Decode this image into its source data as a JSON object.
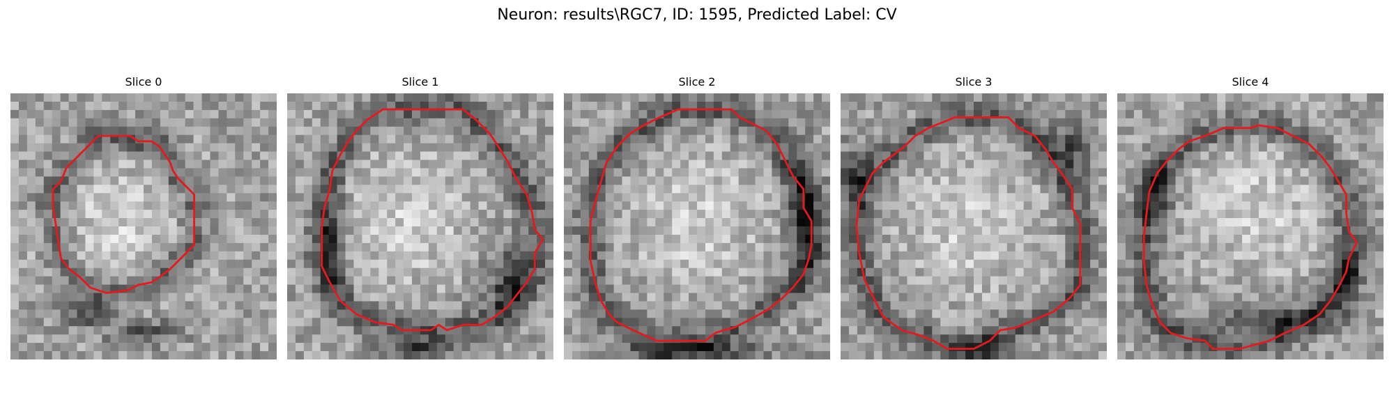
{
  "figure": {
    "title": "Neuron: results\\RGC7, ID: 1595, Predicted Label: CV"
  },
  "panels": [
    {
      "title": "Slice 0",
      "seed": 11,
      "roi": [
        [
          0.36,
          0.16
        ],
        [
          0.45,
          0.16
        ],
        [
          0.48,
          0.18
        ],
        [
          0.53,
          0.18
        ],
        [
          0.56,
          0.2
        ],
        [
          0.58,
          0.23
        ],
        [
          0.6,
          0.26
        ],
        [
          0.61,
          0.29
        ],
        [
          0.63,
          0.32
        ],
        [
          0.66,
          0.35
        ],
        [
          0.69,
          0.38
        ],
        [
          0.69,
          0.43
        ],
        [
          0.69,
          0.5
        ],
        [
          0.69,
          0.57
        ],
        [
          0.66,
          0.6
        ],
        [
          0.63,
          0.63
        ],
        [
          0.6,
          0.66
        ],
        [
          0.56,
          0.69
        ],
        [
          0.53,
          0.71
        ],
        [
          0.48,
          0.72
        ],
        [
          0.44,
          0.74
        ],
        [
          0.36,
          0.75
        ],
        [
          0.3,
          0.73
        ],
        [
          0.26,
          0.69
        ],
        [
          0.22,
          0.66
        ],
        [
          0.19,
          0.62
        ],
        [
          0.18,
          0.56
        ],
        [
          0.17,
          0.49
        ],
        [
          0.16,
          0.43
        ],
        [
          0.16,
          0.36
        ],
        [
          0.19,
          0.33
        ],
        [
          0.21,
          0.28
        ],
        [
          0.24,
          0.25
        ],
        [
          0.27,
          0.22
        ],
        [
          0.3,
          0.19
        ],
        [
          0.33,
          0.16
        ]
      ],
      "bright": [
        0.42,
        0.49,
        0.26,
        0.25
      ],
      "dark": [
        [
          0.5,
          0.9,
          0.13,
          0.05
        ],
        [
          0.28,
          0.83,
          0.1,
          0.05
        ]
      ]
    },
    {
      "title": "Slice 1",
      "seed": 23,
      "roi": [
        [
          0.36,
          0.06
        ],
        [
          0.66,
          0.06
        ],
        [
          0.71,
          0.1
        ],
        [
          0.76,
          0.15
        ],
        [
          0.8,
          0.21
        ],
        [
          0.83,
          0.26
        ],
        [
          0.86,
          0.32
        ],
        [
          0.9,
          0.38
        ],
        [
          0.92,
          0.45
        ],
        [
          0.93,
          0.51
        ],
        [
          0.96,
          0.55
        ],
        [
          0.93,
          0.6
        ],
        [
          0.93,
          0.66
        ],
        [
          0.9,
          0.71
        ],
        [
          0.86,
          0.76
        ],
        [
          0.83,
          0.8
        ],
        [
          0.78,
          0.84
        ],
        [
          0.73,
          0.87
        ],
        [
          0.66,
          0.87
        ],
        [
          0.6,
          0.89
        ],
        [
          0.57,
          0.87
        ],
        [
          0.54,
          0.89
        ],
        [
          0.43,
          0.89
        ],
        [
          0.4,
          0.87
        ],
        [
          0.33,
          0.86
        ],
        [
          0.26,
          0.83
        ],
        [
          0.2,
          0.78
        ],
        [
          0.16,
          0.71
        ],
        [
          0.13,
          0.65
        ],
        [
          0.13,
          0.58
        ],
        [
          0.13,
          0.5
        ],
        [
          0.14,
          0.43
        ],
        [
          0.16,
          0.36
        ],
        [
          0.17,
          0.29
        ],
        [
          0.2,
          0.23
        ],
        [
          0.23,
          0.18
        ],
        [
          0.26,
          0.14
        ],
        [
          0.3,
          0.1
        ]
      ],
      "bright": [
        0.45,
        0.47,
        0.28,
        0.3
      ],
      "dark": [
        [
          0.5,
          0.96,
          0.14,
          0.04
        ],
        [
          0.17,
          0.58,
          0.05,
          0.2
        ],
        [
          0.82,
          0.7,
          0.07,
          0.12
        ]
      ]
    },
    {
      "title": "Slice 2",
      "seed": 37,
      "roi": [
        [
          0.43,
          0.06
        ],
        [
          0.63,
          0.06
        ],
        [
          0.66,
          0.09
        ],
        [
          0.7,
          0.11
        ],
        [
          0.76,
          0.14
        ],
        [
          0.8,
          0.19
        ],
        [
          0.83,
          0.25
        ],
        [
          0.86,
          0.31
        ],
        [
          0.9,
          0.36
        ],
        [
          0.9,
          0.43
        ],
        [
          0.93,
          0.48
        ],
        [
          0.93,
          0.57
        ],
        [
          0.92,
          0.62
        ],
        [
          0.9,
          0.68
        ],
        [
          0.86,
          0.73
        ],
        [
          0.82,
          0.77
        ],
        [
          0.77,
          0.81
        ],
        [
          0.7,
          0.85
        ],
        [
          0.64,
          0.88
        ],
        [
          0.6,
          0.89
        ],
        [
          0.57,
          0.9
        ],
        [
          0.53,
          0.93
        ],
        [
          0.46,
          0.93
        ],
        [
          0.35,
          0.93
        ],
        [
          0.26,
          0.89
        ],
        [
          0.2,
          0.86
        ],
        [
          0.17,
          0.83
        ],
        [
          0.14,
          0.78
        ],
        [
          0.12,
          0.72
        ],
        [
          0.1,
          0.63
        ],
        [
          0.1,
          0.56
        ],
        [
          0.1,
          0.48
        ],
        [
          0.12,
          0.4
        ],
        [
          0.14,
          0.33
        ],
        [
          0.16,
          0.26
        ],
        [
          0.2,
          0.2
        ],
        [
          0.25,
          0.15
        ],
        [
          0.3,
          0.12
        ],
        [
          0.36,
          0.09
        ]
      ],
      "bright": [
        0.5,
        0.48,
        0.28,
        0.28
      ],
      "dark": [
        [
          0.5,
          0.97,
          0.3,
          0.04
        ],
        [
          0.9,
          0.45,
          0.06,
          0.25
        ]
      ]
    },
    {
      "title": "Slice 3",
      "seed": 53,
      "roi": [
        [
          0.33,
          0.13
        ],
        [
          0.43,
          0.09
        ],
        [
          0.63,
          0.09
        ],
        [
          0.67,
          0.13
        ],
        [
          0.73,
          0.16
        ],
        [
          0.77,
          0.21
        ],
        [
          0.8,
          0.26
        ],
        [
          0.83,
          0.3
        ],
        [
          0.87,
          0.36
        ],
        [
          0.87,
          0.43
        ],
        [
          0.9,
          0.49
        ],
        [
          0.9,
          0.6
        ],
        [
          0.9,
          0.72
        ],
        [
          0.86,
          0.77
        ],
        [
          0.8,
          0.82
        ],
        [
          0.73,
          0.85
        ],
        [
          0.66,
          0.88
        ],
        [
          0.6,
          0.89
        ],
        [
          0.56,
          0.93
        ],
        [
          0.5,
          0.96
        ],
        [
          0.4,
          0.96
        ],
        [
          0.35,
          0.93
        ],
        [
          0.3,
          0.91
        ],
        [
          0.23,
          0.89
        ],
        [
          0.16,
          0.84
        ],
        [
          0.12,
          0.76
        ],
        [
          0.09,
          0.7
        ],
        [
          0.07,
          0.6
        ],
        [
          0.06,
          0.5
        ],
        [
          0.07,
          0.4
        ],
        [
          0.09,
          0.36
        ],
        [
          0.12,
          0.3
        ],
        [
          0.16,
          0.26
        ],
        [
          0.2,
          0.23
        ],
        [
          0.24,
          0.2
        ],
        [
          0.28,
          0.16
        ]
      ],
      "bright": [
        0.48,
        0.5,
        0.28,
        0.3
      ],
      "dark": [
        [
          0.05,
          0.3,
          0.06,
          0.12
        ],
        [
          0.88,
          0.2,
          0.08,
          0.1
        ],
        [
          0.55,
          0.96,
          0.1,
          0.04
        ]
      ]
    },
    {
      "title": "Slice 4",
      "seed": 71,
      "roi": [
        [
          0.4,
          0.13
        ],
        [
          0.5,
          0.13
        ],
        [
          0.53,
          0.12
        ],
        [
          0.6,
          0.13
        ],
        [
          0.66,
          0.16
        ],
        [
          0.72,
          0.19
        ],
        [
          0.77,
          0.24
        ],
        [
          0.8,
          0.28
        ],
        [
          0.83,
          0.33
        ],
        [
          0.86,
          0.38
        ],
        [
          0.86,
          0.45
        ],
        [
          0.87,
          0.52
        ],
        [
          0.9,
          0.56
        ],
        [
          0.87,
          0.62
        ],
        [
          0.86,
          0.67
        ],
        [
          0.83,
          0.73
        ],
        [
          0.8,
          0.78
        ],
        [
          0.76,
          0.83
        ],
        [
          0.7,
          0.87
        ],
        [
          0.63,
          0.9
        ],
        [
          0.57,
          0.93
        ],
        [
          0.46,
          0.96
        ],
        [
          0.36,
          0.96
        ],
        [
          0.33,
          0.93
        ],
        [
          0.26,
          0.92
        ],
        [
          0.2,
          0.9
        ],
        [
          0.16,
          0.86
        ],
        [
          0.13,
          0.79
        ],
        [
          0.11,
          0.72
        ],
        [
          0.1,
          0.63
        ],
        [
          0.1,
          0.54
        ],
        [
          0.11,
          0.45
        ],
        [
          0.12,
          0.37
        ],
        [
          0.15,
          0.3
        ],
        [
          0.19,
          0.25
        ],
        [
          0.23,
          0.21
        ],
        [
          0.27,
          0.18
        ],
        [
          0.33,
          0.16
        ]
      ],
      "bright": [
        0.52,
        0.43,
        0.28,
        0.28
      ],
      "dark": [
        [
          0.58,
          0.85,
          0.22,
          0.05
        ],
        [
          0.15,
          0.38,
          0.06,
          0.12
        ],
        [
          0.86,
          0.7,
          0.06,
          0.12
        ]
      ]
    }
  ]
}
